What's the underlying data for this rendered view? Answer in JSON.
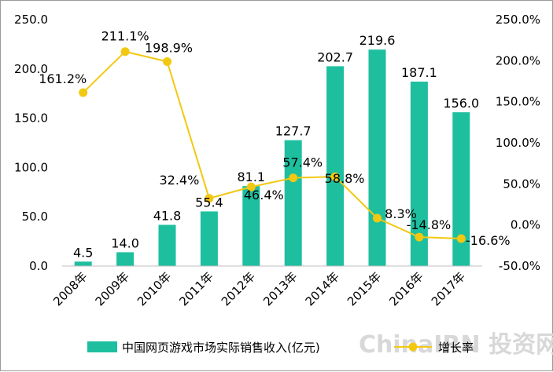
{
  "chart_data": {
    "type": "bar",
    "categories": [
      "2008年",
      "2009年",
      "2010年",
      "2011年",
      "2012年",
      "2013年",
      "2014年",
      "2015年",
      "2016年",
      "2017年"
    ],
    "series": [
      {
        "name": "中国网页游戏市场实际销售收入(亿元)",
        "type": "bar",
        "axis": "left",
        "color": "#1dbf9f",
        "values": [
          4.5,
          14.0,
          41.8,
          55.4,
          81.1,
          127.7,
          202.7,
          219.6,
          187.1,
          156.0
        ],
        "labels": [
          "4.5",
          "14.0",
          "41.8",
          "55.4",
          "81.1",
          "127.7",
          "202.7",
          "219.6",
          "187.1",
          "156.0"
        ]
      },
      {
        "name": "增长率",
        "type": "line",
        "axis": "right",
        "color": "#f2c811",
        "values": [
          161.2,
          211.1,
          198.9,
          32.4,
          46.4,
          57.4,
          58.8,
          8.3,
          -14.8,
          -16.6
        ],
        "labels": [
          "161.2%",
          "211.1%",
          "198.9%",
          "32.4%",
          "46.4%",
          "57.4%",
          "58.8%",
          "8.3%",
          "-14.8%",
          "-16.6%"
        ]
      }
    ],
    "y_left": {
      "min": 0,
      "max": 250,
      "ticks": [
        "0.0",
        "50.0",
        "100.0",
        "150.0",
        "200.0",
        "250.0"
      ]
    },
    "y_right": {
      "min": -50,
      "max": 250,
      "ticks": [
        "-50.0%",
        "0.0%",
        "50.0%",
        "100.0%",
        "150.0%",
        "200.0%",
        "250.0%"
      ]
    },
    "grid": false,
    "legend_position": "bottom"
  },
  "watermark": "ChinaIRN 投资网"
}
